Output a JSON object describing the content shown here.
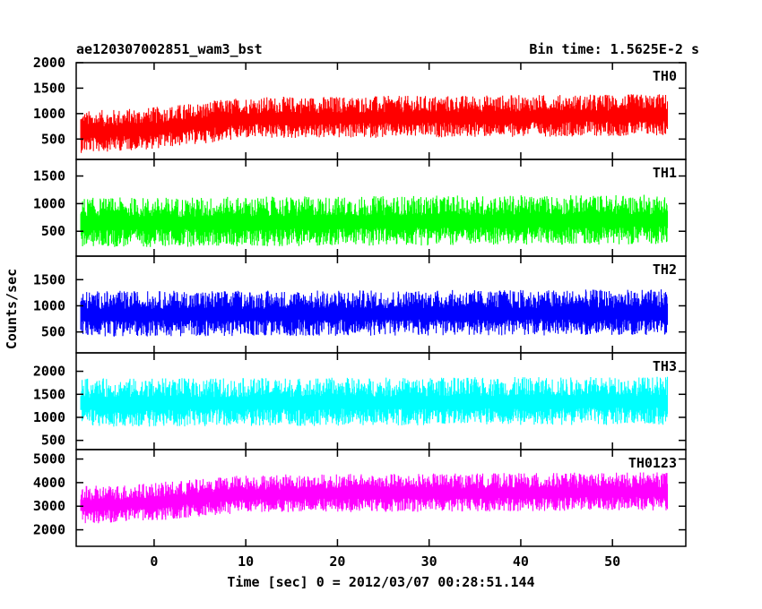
{
  "chart_data": {
    "type": "line",
    "title": "ae120307002851_wam3_bst",
    "subtitle": "Bin time: 1.5625E-2 s",
    "xlabel": "Time [sec] 0 = 2012/03/07 00:28:51.144",
    "ylabel": "Counts/sec",
    "xlim": [
      -8.5,
      58
    ],
    "xticks": [
      0,
      10,
      20,
      30,
      40,
      50
    ],
    "x_range": [
      -8,
      56
    ],
    "grid": false,
    "panels": [
      {
        "name": "TH0",
        "color": "#ff0000",
        "ylim": [
          100,
          2000
        ],
        "yticks": [
          500,
          1000,
          1500,
          2000
        ],
        "mean": [
          [
            -8,
            620
          ],
          [
            0,
            700
          ],
          [
            10,
            900
          ],
          [
            56,
            960
          ]
        ],
        "spread": 330
      },
      {
        "name": "TH1",
        "color": "#00ff00",
        "ylim": [
          50,
          1800
        ],
        "yticks": [
          500,
          1000,
          1500
        ],
        "mean": [
          [
            -8,
            640
          ],
          [
            56,
            700
          ]
        ],
        "spread": 360
      },
      {
        "name": "TH2",
        "color": "#0000ff",
        "ylim": [
          100,
          1950
        ],
        "yticks": [
          500,
          1000,
          1500
        ],
        "mean": [
          [
            -8,
            830
          ],
          [
            56,
            860
          ]
        ],
        "spread": 350
      },
      {
        "name": "TH3",
        "color": "#00ffff",
        "ylim": [
          300,
          2400
        ],
        "yticks": [
          500,
          1000,
          1500,
          2000
        ],
        "mean": [
          [
            -8,
            1300
          ],
          [
            56,
            1340
          ]
        ],
        "spread": 420
      },
      {
        "name": "TH0123",
        "color": "#ff00ff",
        "ylim": [
          1300,
          5400
        ],
        "yticks": [
          2000,
          3000,
          4000,
          5000
        ],
        "mean": [
          [
            -8,
            3000
          ],
          [
            0,
            3150
          ],
          [
            10,
            3500
          ],
          [
            56,
            3600
          ]
        ],
        "spread": 650
      }
    ]
  }
}
